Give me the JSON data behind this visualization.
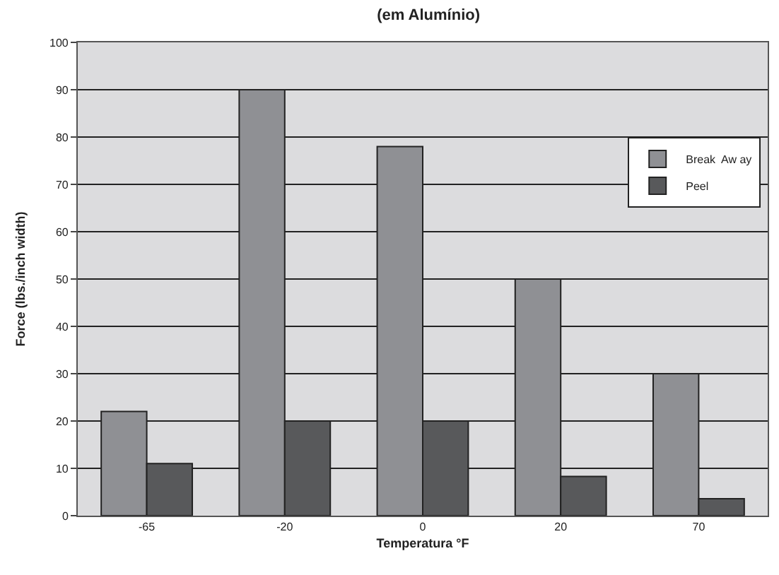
{
  "chart_data": {
    "type": "bar",
    "title": "(em Alumínio)",
    "xlabel": "Temperatura °F",
    "ylabel": "Force (lbs./inch width)",
    "categories": [
      "-65",
      "-20",
      "0",
      "20",
      "70"
    ],
    "series": [
      {
        "name": "Break  Aw ay",
        "color": "#8f9094",
        "values": [
          22,
          90,
          78,
          50,
          30
        ]
      },
      {
        "name": "Peel",
        "color": "#58595b",
        "values": [
          11,
          20,
          20,
          8.3,
          3.6
        ]
      }
    ],
    "ylim": [
      0,
      100
    ],
    "yticks": [
      0,
      10,
      20,
      30,
      40,
      50,
      60,
      70,
      80,
      90,
      100
    ],
    "grid": "y",
    "legend": "top right"
  }
}
